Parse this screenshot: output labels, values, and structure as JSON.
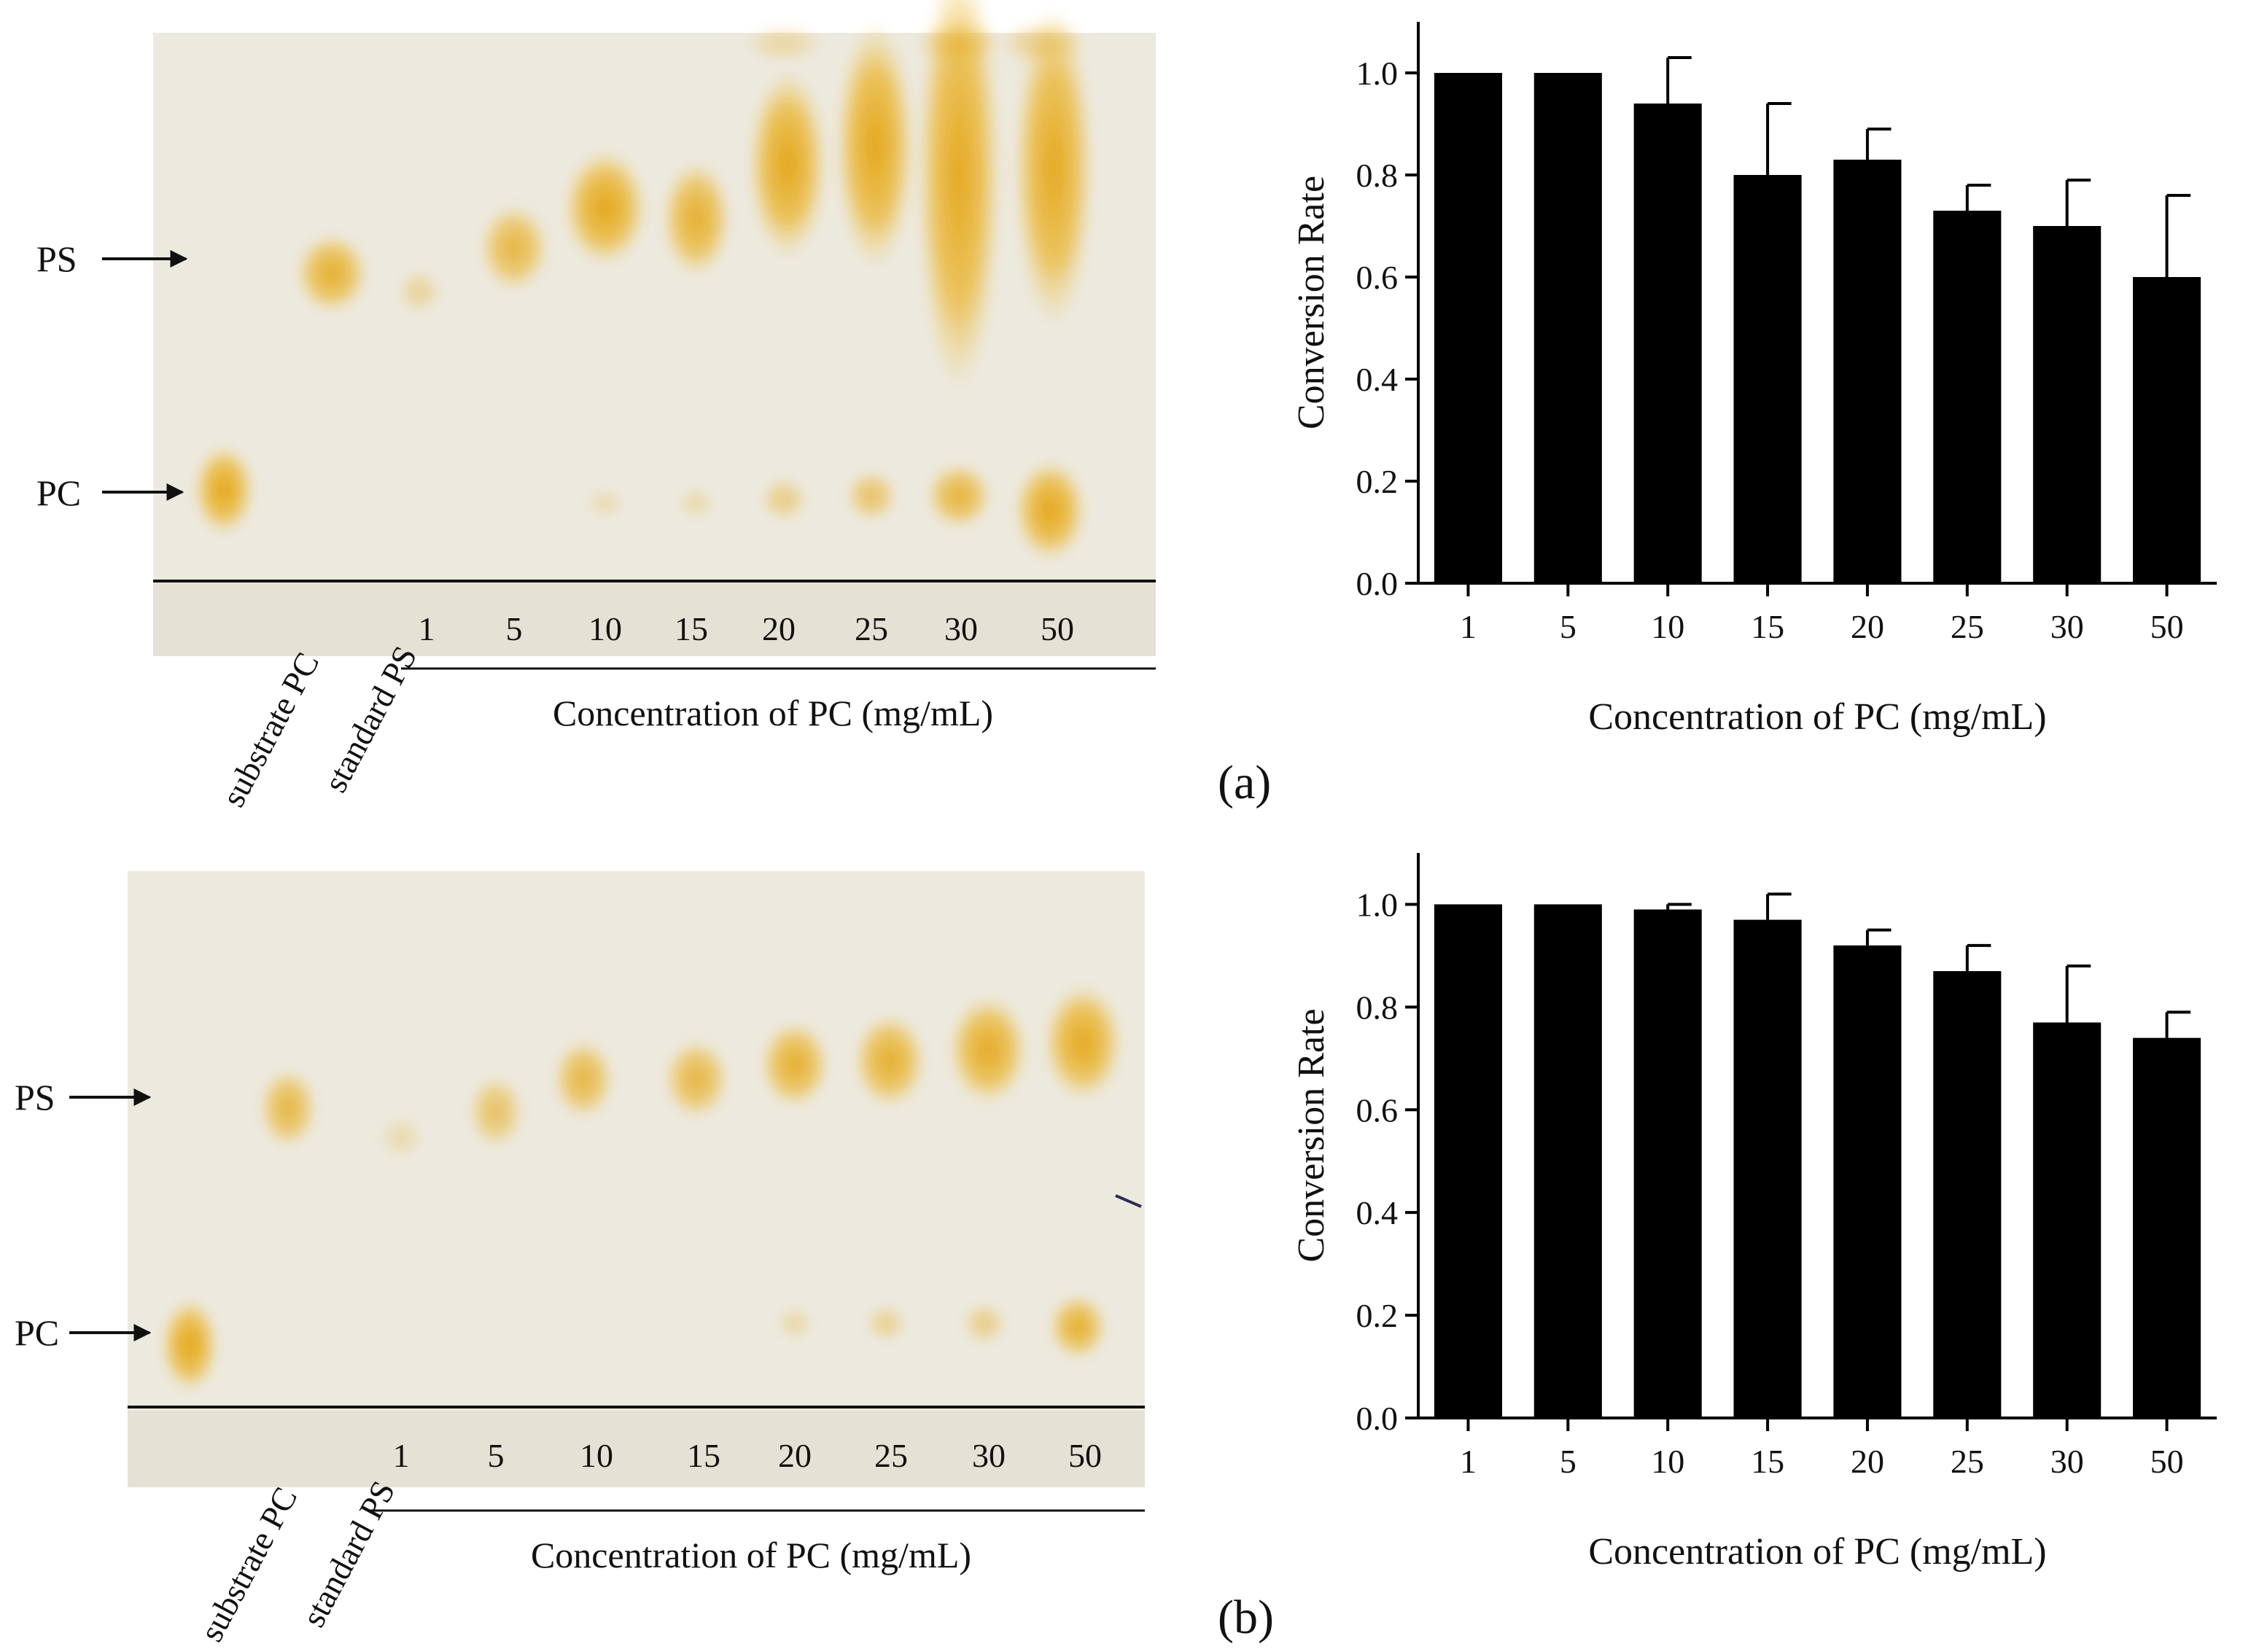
{
  "panels": [
    {
      "label": "(a)",
      "tlc": {
        "band_labels": {
          "ps": "PS",
          "pc": "PC"
        },
        "lanes": [
          "substrate PC",
          "standard PS"
        ],
        "conc_lanes": [
          "1",
          "5",
          "10",
          "15",
          "20",
          "25",
          "30",
          "50"
        ],
        "conc_title": "Concentration of PC (mg/mL)"
      }
    },
    {
      "label": "(b)",
      "tlc": {
        "band_labels": {
          "ps": "PS",
          "pc": "PC"
        },
        "lanes": [
          "substrate PC",
          "standard PS"
        ],
        "conc_lanes": [
          "1",
          "5",
          "10",
          "15",
          "20",
          "25",
          "30",
          "50"
        ],
        "conc_title": "Concentration of PC (mg/mL)"
      }
    }
  ],
  "chart_data": [
    {
      "type": "bar",
      "panel": "(a)",
      "categories": [
        "1",
        "5",
        "10",
        "15",
        "20",
        "25",
        "30",
        "50"
      ],
      "values": [
        1.0,
        1.0,
        0.94,
        0.8,
        0.83,
        0.73,
        0.7,
        0.6
      ],
      "error_upper": [
        0.0,
        0.0,
        0.09,
        0.14,
        0.06,
        0.05,
        0.09,
        0.16
      ],
      "xlabel": "Concentration of PC (mg/mL)",
      "ylabel": "Conversion Rate",
      "ylim": [
        0,
        1.1
      ],
      "yticks": [
        "0.0",
        "0.2",
        "0.4",
        "0.6",
        "0.8",
        "1.0"
      ],
      "bar_color": "#000000"
    },
    {
      "type": "bar",
      "panel": "(b)",
      "categories": [
        "1",
        "5",
        "10",
        "15",
        "20",
        "25",
        "30",
        "50"
      ],
      "values": [
        1.0,
        1.0,
        0.99,
        0.97,
        0.92,
        0.87,
        0.77,
        0.74
      ],
      "error_upper": [
        0.0,
        0.0,
        0.01,
        0.05,
        0.03,
        0.05,
        0.11,
        0.05
      ],
      "xlabel": "Concentration of PC (mg/mL)",
      "ylabel": "Conversion Rate",
      "ylim": [
        0,
        1.1
      ],
      "yticks": [
        "0.0",
        "0.2",
        "0.4",
        "0.6",
        "0.8",
        "1.0"
      ],
      "bar_color": "#000000"
    }
  ],
  "colors": {
    "plate": "#ece9df",
    "spot": "#e8a80a",
    "ink": "#111111"
  }
}
